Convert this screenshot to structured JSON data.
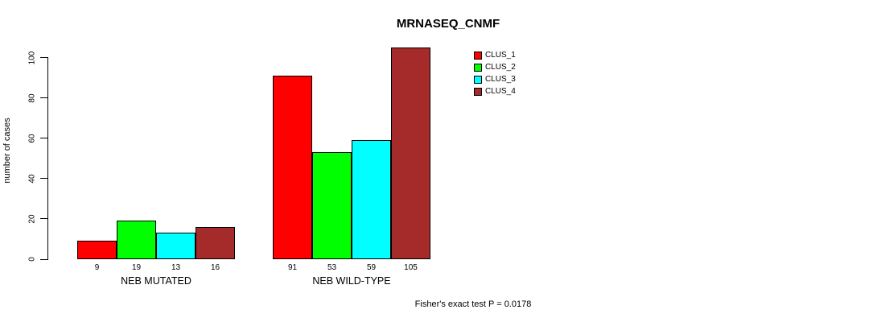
{
  "title": "MRNASEQ_CNMF",
  "ylabel": "number of cases",
  "footer": "Fisher's exact test P = 0.0178",
  "chart_data": {
    "type": "bar",
    "title": "MRNASEQ_CNMF",
    "ylabel": "number of cases",
    "xlabel": "",
    "categories": [
      "NEB MUTATED",
      "NEB WILD-TYPE"
    ],
    "series": [
      {
        "name": "CLUS_1",
        "color": "#FF0000",
        "values": [
          9,
          91
        ]
      },
      {
        "name": "CLUS_2",
        "color": "#00FF00",
        "values": [
          19,
          53
        ]
      },
      {
        "name": "CLUS_3",
        "color": "#00FFFF",
        "values": [
          13,
          59
        ]
      },
      {
        "name": "CLUS_4",
        "color": "#A52A2A",
        "values": [
          16,
          105
        ]
      }
    ],
    "bar_value_labels": [
      [
        "9",
        "19",
        "13",
        "16"
      ],
      [
        "91",
        "53",
        "59",
        "105"
      ]
    ],
    "yticks": [
      0,
      20,
      40,
      60,
      80,
      100
    ],
    "ylim": [
      0,
      100
    ],
    "grid": false,
    "legend_position": "top-right",
    "annotation": "Fisher's exact test P = 0.0178"
  }
}
